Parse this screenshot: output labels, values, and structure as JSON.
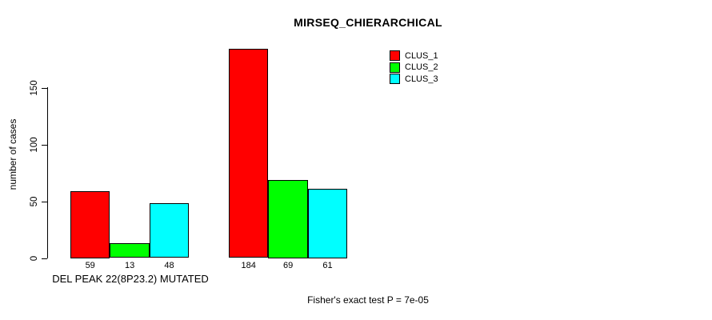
{
  "chart_data": {
    "type": "bar",
    "title": "MIRSEQ_CHIERARCHICAL",
    "ylabel": "number of cases",
    "xlabel": "",
    "ylim": [
      0,
      150
    ],
    "yticks": [
      0,
      50,
      100,
      150
    ],
    "grid": false,
    "legend_position": "top-right",
    "categories": [
      "DEL PEAK 22(8P23.2) MUTATED",
      ""
    ],
    "series": [
      {
        "name": "CLUS_1",
        "color": "#ff0000",
        "values": [
          59,
          184
        ]
      },
      {
        "name": "CLUS_2",
        "color": "#00ff00",
        "values": [
          13,
          69
        ]
      },
      {
        "name": "CLUS_3",
        "color": "#00ffff",
        "values": [
          48,
          61
        ]
      }
    ],
    "bar_value_labels": [
      [
        "59",
        "13",
        "48"
      ],
      [
        "184",
        "69",
        "61"
      ]
    ],
    "annotation": "Fisher's exact test P = 7e-05",
    "colors": {
      "axis": "#000000",
      "text": "#000000",
      "background": "#ffffff",
      "bar_border": "#000000"
    }
  }
}
